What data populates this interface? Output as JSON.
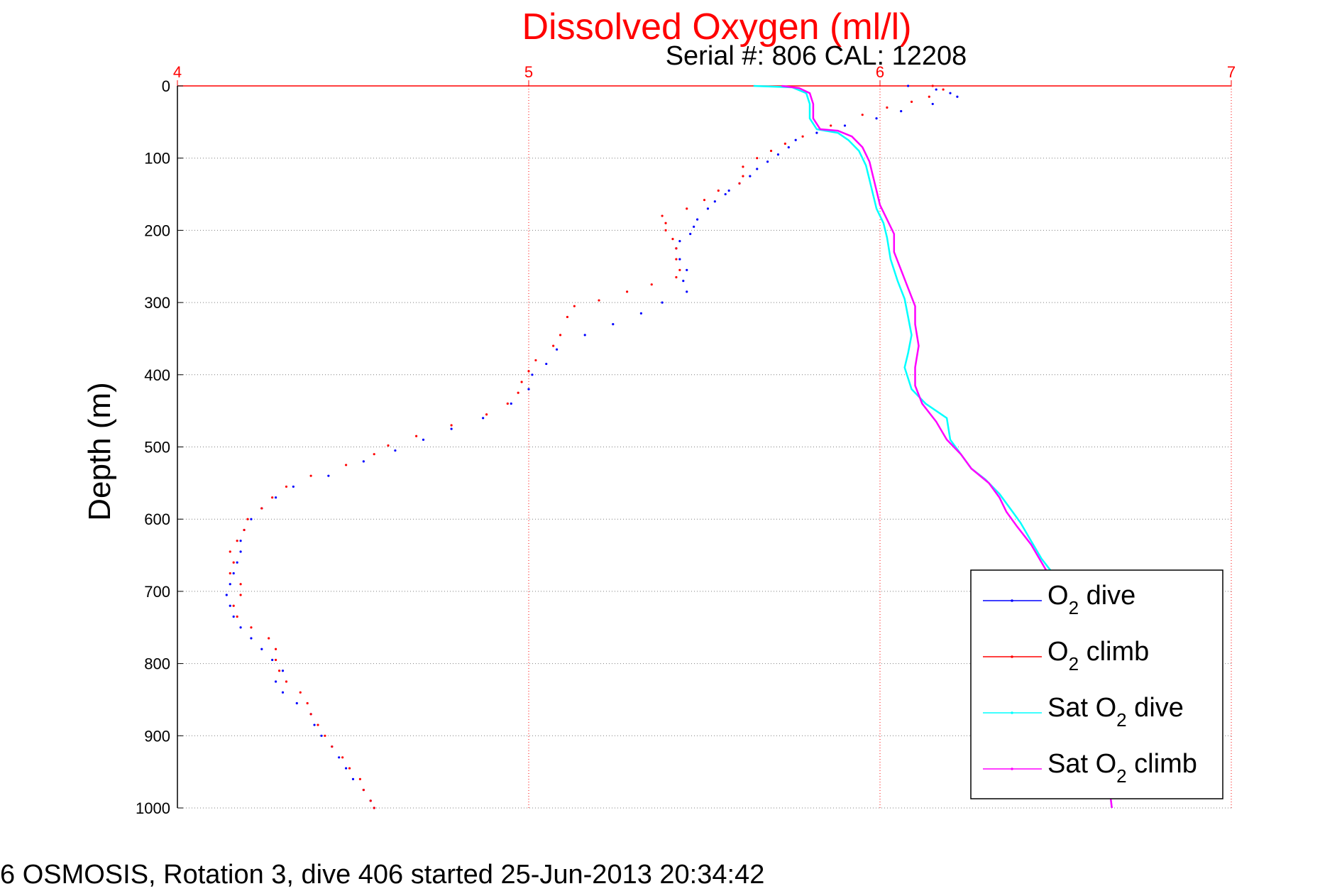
{
  "chart_data": {
    "type": "scatter",
    "title": "Dissolved Oxygen (ml/l)",
    "subtitle": "Serial #: 806  CAL: 12208",
    "ylabel": "Depth (m)",
    "xlabel": "",
    "xlim": [
      4,
      7
    ],
    "ylim": [
      0,
      1000
    ],
    "y_reversed": true,
    "x_axis_position": "top",
    "xticks": [
      "4",
      "5",
      "6",
      "7"
    ],
    "yticks": [
      "0",
      "100",
      "200",
      "300",
      "400",
      "500",
      "600",
      "700",
      "800",
      "900",
      "1000"
    ],
    "grid": true,
    "legend_position": "bottom-right",
    "footer": "6 OSMOSIS, Rotation 3, dive 406 started 25-Jun-2013 20:34:42",
    "colors": {
      "title": "#ff0000",
      "axis": "#ff0000",
      "grid": "#7f7f7f"
    },
    "legend": [
      {
        "label_pre": "O",
        "label_sub": "2",
        "label_post": " dive"
      },
      {
        "label_pre": "O",
        "label_sub": "2",
        "label_post": " climb"
      },
      {
        "label_pre": "Sat O",
        "label_sub": "2",
        "label_post": " dive"
      },
      {
        "label_pre": "Sat O",
        "label_sub": "2",
        "label_post": " climb"
      }
    ],
    "series": [
      {
        "style": "dots",
        "color": "#0000ff",
        "points": [
          [
            6.08,
            0
          ],
          [
            6.16,
            5
          ],
          [
            6.2,
            10
          ],
          [
            6.22,
            15
          ],
          [
            6.15,
            25
          ],
          [
            6.06,
            35
          ],
          [
            5.99,
            45
          ],
          [
            5.9,
            55
          ],
          [
            5.82,
            65
          ],
          [
            5.76,
            75
          ],
          [
            5.74,
            85
          ],
          [
            5.71,
            95
          ],
          [
            5.68,
            105
          ],
          [
            5.65,
            115
          ],
          [
            5.63,
            125
          ],
          [
            5.6,
            135
          ],
          [
            5.57,
            145
          ],
          [
            5.56,
            150
          ],
          [
            5.53,
            160
          ],
          [
            5.51,
            170
          ],
          [
            5.48,
            185
          ],
          [
            5.47,
            195
          ],
          [
            5.46,
            205
          ],
          [
            5.43,
            215
          ],
          [
            5.42,
            225
          ],
          [
            5.43,
            240
          ],
          [
            5.45,
            255
          ],
          [
            5.44,
            270
          ],
          [
            5.45,
            285
          ],
          [
            5.38,
            300
          ],
          [
            5.32,
            315
          ],
          [
            5.24,
            330
          ],
          [
            5.16,
            345
          ],
          [
            5.08,
            365
          ],
          [
            5.05,
            385
          ],
          [
            5.01,
            400
          ],
          [
            5.0,
            420
          ],
          [
            4.95,
            440
          ],
          [
            4.87,
            460
          ],
          [
            4.78,
            475
          ],
          [
            4.7,
            490
          ],
          [
            4.62,
            505
          ],
          [
            4.53,
            520
          ],
          [
            4.43,
            540
          ],
          [
            4.33,
            555
          ],
          [
            4.28,
            570
          ],
          [
            4.24,
            585
          ],
          [
            4.21,
            600
          ],
          [
            4.19,
            615
          ],
          [
            4.18,
            630
          ],
          [
            4.18,
            645
          ],
          [
            4.17,
            660
          ],
          [
            4.16,
            675
          ],
          [
            4.15,
            690
          ],
          [
            4.14,
            705
          ],
          [
            4.15,
            720
          ],
          [
            4.16,
            735
          ],
          [
            4.18,
            750
          ],
          [
            4.21,
            765
          ],
          [
            4.24,
            780
          ],
          [
            4.27,
            795
          ],
          [
            4.3,
            810
          ],
          [
            4.28,
            825
          ],
          [
            4.3,
            840
          ],
          [
            4.34,
            855
          ],
          [
            4.38,
            870
          ],
          [
            4.39,
            885
          ],
          [
            4.41,
            900
          ],
          [
            4.44,
            915
          ],
          [
            4.46,
            930
          ],
          [
            4.48,
            945
          ],
          [
            4.5,
            960
          ],
          [
            4.53,
            975
          ],
          [
            4.55,
            990
          ],
          [
            4.56,
            1000
          ]
        ]
      },
      {
        "style": "dots",
        "color": "#ff0000",
        "points": [
          [
            6.15,
            0
          ],
          [
            6.18,
            5
          ],
          [
            6.14,
            15
          ],
          [
            6.09,
            22
          ],
          [
            6.02,
            30
          ],
          [
            5.95,
            40
          ],
          [
            5.86,
            55
          ],
          [
            5.78,
            70
          ],
          [
            5.73,
            80
          ],
          [
            5.69,
            90
          ],
          [
            5.65,
            100
          ],
          [
            5.61,
            112
          ],
          [
            5.61,
            125
          ],
          [
            5.6,
            135
          ],
          [
            5.54,
            145
          ],
          [
            5.5,
            158
          ],
          [
            5.45,
            170
          ],
          [
            5.38,
            180
          ],
          [
            5.39,
            190
          ],
          [
            5.39,
            200
          ],
          [
            5.41,
            212
          ],
          [
            5.42,
            225
          ],
          [
            5.42,
            240
          ],
          [
            5.43,
            255
          ],
          [
            5.42,
            265
          ],
          [
            5.35,
            275
          ],
          [
            5.28,
            285
          ],
          [
            5.2,
            297
          ],
          [
            5.13,
            305
          ],
          [
            5.11,
            320
          ],
          [
            5.09,
            345
          ],
          [
            5.07,
            360
          ],
          [
            5.02,
            380
          ],
          [
            5.0,
            395
          ],
          [
            4.98,
            410
          ],
          [
            4.97,
            425
          ],
          [
            4.94,
            440
          ],
          [
            4.88,
            455
          ],
          [
            4.78,
            470
          ],
          [
            4.68,
            485
          ],
          [
            4.6,
            498
          ],
          [
            4.56,
            510
          ],
          [
            4.48,
            525
          ],
          [
            4.38,
            540
          ],
          [
            4.31,
            555
          ],
          [
            4.27,
            570
          ],
          [
            4.24,
            585
          ],
          [
            4.2,
            600
          ],
          [
            4.19,
            615
          ],
          [
            4.17,
            630
          ],
          [
            4.15,
            645
          ],
          [
            4.16,
            660
          ],
          [
            4.15,
            675
          ],
          [
            4.18,
            690
          ],
          [
            4.18,
            705
          ],
          [
            4.16,
            720
          ],
          [
            4.17,
            735
          ],
          [
            4.21,
            750
          ],
          [
            4.26,
            765
          ],
          [
            4.28,
            780
          ],
          [
            4.28,
            795
          ],
          [
            4.29,
            810
          ],
          [
            4.31,
            825
          ],
          [
            4.35,
            840
          ],
          [
            4.37,
            855
          ],
          [
            4.38,
            870
          ],
          [
            4.4,
            885
          ],
          [
            4.42,
            900
          ],
          [
            4.44,
            915
          ],
          [
            4.47,
            930
          ],
          [
            4.49,
            945
          ],
          [
            4.52,
            960
          ],
          [
            4.53,
            975
          ],
          [
            4.55,
            990
          ],
          [
            4.56,
            1000
          ]
        ]
      },
      {
        "style": "line",
        "color": "#00ffff",
        "points": [
          [
            5.64,
            0
          ],
          [
            5.75,
            2
          ],
          [
            5.79,
            10
          ],
          [
            5.8,
            25
          ],
          [
            5.8,
            45
          ],
          [
            5.82,
            60
          ],
          [
            5.88,
            65
          ],
          [
            5.91,
            75
          ],
          [
            5.94,
            90
          ],
          [
            5.96,
            110
          ],
          [
            5.97,
            130
          ],
          [
            5.98,
            150
          ],
          [
            5.99,
            170
          ],
          [
            6.01,
            190
          ],
          [
            6.02,
            210
          ],
          [
            6.03,
            240
          ],
          [
            6.05,
            270
          ],
          [
            6.07,
            295
          ],
          [
            6.08,
            320
          ],
          [
            6.09,
            345
          ],
          [
            6.08,
            370
          ],
          [
            6.07,
            390
          ],
          [
            6.09,
            420
          ],
          [
            6.13,
            440
          ],
          [
            6.19,
            460
          ],
          [
            6.2,
            490
          ],
          [
            6.23,
            510
          ],
          [
            6.26,
            530
          ],
          [
            6.3,
            545
          ],
          [
            6.34,
            565
          ],
          [
            6.37,
            585
          ],
          [
            6.4,
            605
          ],
          [
            6.43,
            630
          ],
          [
            6.46,
            655
          ],
          [
            6.5,
            680
          ],
          [
            6.54,
            710
          ],
          [
            6.57,
            740
          ],
          [
            6.59,
            770
          ],
          [
            6.6,
            800
          ],
          [
            6.61,
            830
          ],
          [
            6.62,
            860
          ],
          [
            6.63,
            890
          ],
          [
            6.64,
            920
          ],
          [
            6.65,
            960
          ],
          [
            6.66,
            1000
          ]
        ]
      },
      {
        "style": "line",
        "color": "#ff00ff",
        "points": [
          [
            5.72,
            0
          ],
          [
            5.77,
            3
          ],
          [
            5.8,
            10
          ],
          [
            5.81,
            25
          ],
          [
            5.81,
            45
          ],
          [
            5.83,
            60
          ],
          [
            5.88,
            62
          ],
          [
            5.92,
            70
          ],
          [
            5.95,
            85
          ],
          [
            5.97,
            105
          ],
          [
            5.98,
            125
          ],
          [
            5.99,
            145
          ],
          [
            6.0,
            165
          ],
          [
            6.02,
            185
          ],
          [
            6.04,
            205
          ],
          [
            6.04,
            230
          ],
          [
            6.06,
            255
          ],
          [
            6.08,
            280
          ],
          [
            6.1,
            305
          ],
          [
            6.1,
            330
          ],
          [
            6.11,
            360
          ],
          [
            6.1,
            390
          ],
          [
            6.1,
            415
          ],
          [
            6.12,
            440
          ],
          [
            6.16,
            465
          ],
          [
            6.19,
            490
          ],
          [
            6.23,
            510
          ],
          [
            6.26,
            530
          ],
          [
            6.31,
            550
          ],
          [
            6.34,
            570
          ],
          [
            6.36,
            590
          ],
          [
            6.39,
            610
          ],
          [
            6.43,
            635
          ],
          [
            6.46,
            660
          ],
          [
            6.49,
            685
          ],
          [
            6.53,
            710
          ],
          [
            6.56,
            740
          ],
          [
            6.58,
            770
          ],
          [
            6.6,
            800
          ],
          [
            6.61,
            830
          ],
          [
            6.62,
            860
          ],
          [
            6.63,
            890
          ],
          [
            6.64,
            920
          ],
          [
            6.65,
            960
          ],
          [
            6.66,
            1000
          ]
        ]
      }
    ]
  }
}
